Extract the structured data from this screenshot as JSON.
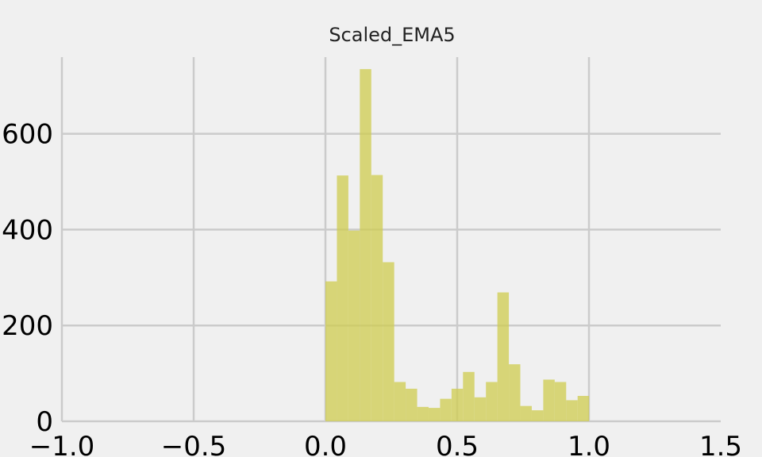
{
  "chart_data": {
    "type": "bar",
    "title": "Scaled_EMA5",
    "xlabel": "",
    "ylabel": "",
    "xlim": [
      -1.0,
      1.5
    ],
    "ylim": [
      0,
      760
    ],
    "x_ticks": [
      -1.0,
      -0.5,
      0.0,
      0.5,
      1.0,
      1.5
    ],
    "x_tick_labels": [
      "−1.0",
      "−0.5",
      "0.0",
      "0.5",
      "1.0",
      "1.5"
    ],
    "y_ticks": [
      0,
      200,
      400,
      600
    ],
    "y_tick_labels": [
      "0",
      "200",
      "400",
      "600"
    ],
    "grid": true,
    "bar_color": "#cfcc4f",
    "bin_width": 0.0435,
    "bins": [
      0.0,
      0.0435,
      0.087,
      0.1305,
      0.174,
      0.2175,
      0.261,
      0.3045,
      0.348,
      0.3915,
      0.435,
      0.4785,
      0.522,
      0.5655,
      0.609,
      0.6525,
      0.696,
      0.7395,
      0.783,
      0.8265,
      0.87,
      0.9135,
      0.957
    ],
    "values": [
      292,
      513,
      398,
      735,
      514,
      332,
      82,
      68,
      30,
      28,
      47,
      68,
      103,
      50,
      82,
      269,
      119,
      32,
      23,
      87,
      82,
      44,
      53
    ]
  },
  "colors": {
    "background": "#f0f0f0",
    "grid": "#cbcbcb"
  }
}
